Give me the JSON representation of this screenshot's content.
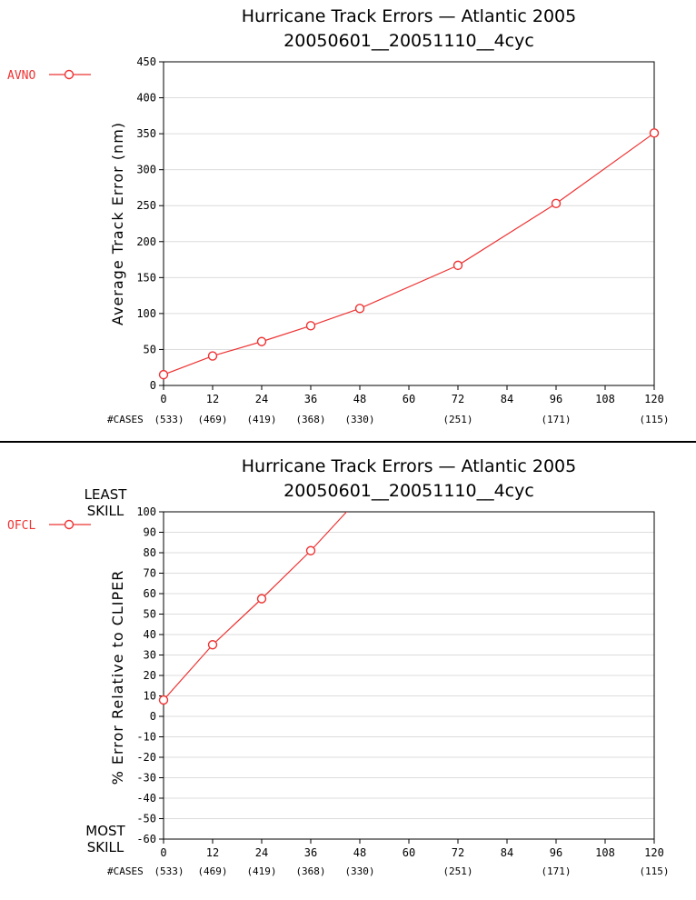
{
  "colors": {
    "series": "#ee3333",
    "grid": "#dcdcdc",
    "axis": "#000000"
  },
  "chart_data": [
    {
      "type": "line",
      "title": "Hurricane Track Errors — Atlantic 2005",
      "subtitle": "20050601__20051110__4cyc",
      "xlabel": "",
      "ylabel": "Average Track Error (nm)",
      "x_ticks": [
        "0",
        "12",
        "24",
        "36",
        "48",
        "60",
        "72",
        "84",
        "96",
        "108",
        "120"
      ],
      "xlim": [
        0,
        120
      ],
      "ylim": [
        0,
        450
      ],
      "y_ticks": [
        0,
        50,
        100,
        150,
        200,
        250,
        300,
        350,
        400,
        450
      ],
      "grid": true,
      "cases_label": "#CASES",
      "cases": [
        {
          "x": 0,
          "label": "(533)"
        },
        {
          "x": 12,
          "label": "(469)"
        },
        {
          "x": 24,
          "label": "(419)"
        },
        {
          "x": 36,
          "label": "(368)"
        },
        {
          "x": 48,
          "label": "(330)"
        },
        {
          "x": 72,
          "label": "(251)"
        },
        {
          "x": 96,
          "label": "(171)"
        },
        {
          "x": 120,
          "label": "(115)"
        }
      ],
      "legend_position": "left of plot, top",
      "series": [
        {
          "name": "AVNO",
          "x": [
            0,
            12,
            24,
            36,
            48,
            72,
            96,
            120
          ],
          "values": [
            15,
            41,
            61,
            83,
            107,
            167,
            253,
            351
          ]
        }
      ]
    },
    {
      "type": "line",
      "title": "Hurricane Track Errors — Atlantic 2005",
      "subtitle": "20050601__20051110__4cyc",
      "xlabel": "",
      "ylabel": "% Error Relative to CLIPER",
      "x_ticks": [
        "0",
        "12",
        "24",
        "36",
        "48",
        "60",
        "72",
        "84",
        "96",
        "108",
        "120"
      ],
      "xlim": [
        0,
        120
      ],
      "ylim": [
        -60,
        100
      ],
      "y_ticks": [
        -60,
        -50,
        -40,
        -30,
        -20,
        -10,
        0,
        10,
        20,
        30,
        40,
        50,
        60,
        70,
        80,
        90,
        100
      ],
      "grid": true,
      "top_annotation": [
        "LEAST",
        "SKILL"
      ],
      "bottom_annotation": [
        "MOST",
        "SKILL"
      ],
      "cases_label": "#CASES",
      "cases": [
        {
          "x": 0,
          "label": "(533)"
        },
        {
          "x": 12,
          "label": "(469)"
        },
        {
          "x": 24,
          "label": "(419)"
        },
        {
          "x": 36,
          "label": "(368)"
        },
        {
          "x": 48,
          "label": "(330)"
        },
        {
          "x": 72,
          "label": "(251)"
        },
        {
          "x": 96,
          "label": "(171)"
        },
        {
          "x": 120,
          "label": "(115)"
        }
      ],
      "legend_position": "left of plot, top",
      "series": [
        {
          "name": "OFCL",
          "x": [
            0,
            12,
            24,
            36,
            48
          ],
          "values": [
            8,
            35,
            57.5,
            81,
            107
          ]
        }
      ]
    }
  ]
}
